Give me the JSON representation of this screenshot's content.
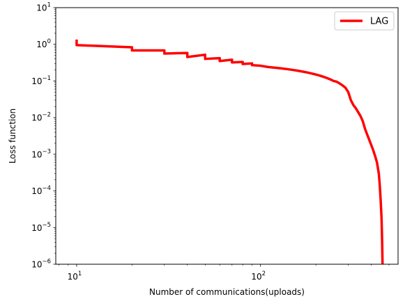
{
  "chart_data": {
    "type": "line",
    "xlabel": "Number of communications(uploads)",
    "ylabel": "Loss function",
    "xscale": "log",
    "yscale": "log",
    "xlim": [
      7.7,
      560
    ],
    "ylim": [
      1e-06,
      10
    ],
    "grid": false,
    "legend_position": "top-right",
    "x_ticks": [
      {
        "value": 10,
        "base": "10",
        "exp": "1"
      },
      {
        "value": 100,
        "base": "10",
        "exp": "2"
      }
    ],
    "y_ticks": [
      {
        "value": 1e-06,
        "base": "10",
        "exp": "−6"
      },
      {
        "value": 1e-05,
        "base": "10",
        "exp": "−5"
      },
      {
        "value": 0.0001,
        "base": "10",
        "exp": "−4"
      },
      {
        "value": 0.001,
        "base": "10",
        "exp": "−3"
      },
      {
        "value": 0.01,
        "base": "10",
        "exp": "−2"
      },
      {
        "value": 0.1,
        "base": "10",
        "exp": "−1"
      },
      {
        "value": 1,
        "base": "10",
        "exp": "0"
      },
      {
        "value": 10,
        "base": "10",
        "exp": "1"
      }
    ],
    "series": [
      {
        "name": "LAG",
        "color": "#ff0000",
        "style": "steps",
        "x": [
          10,
          10,
          20,
          20,
          30,
          30,
          40,
          40,
          50,
          50,
          60,
          60,
          70,
          70,
          80,
          80,
          90,
          90,
          100,
          110,
          120,
          130,
          140,
          150,
          160,
          170,
          180,
          190,
          200,
          210,
          220,
          230,
          240,
          250,
          260,
          270,
          280,
          290,
          300,
          310,
          320,
          330,
          340,
          350,
          360,
          370,
          380,
          390,
          400,
          410,
          420,
          430,
          440,
          445,
          450,
          455,
          458,
          460,
          461
        ],
        "y": [
          1.35,
          0.95,
          0.83,
          0.68,
          0.68,
          0.56,
          0.58,
          0.45,
          0.52,
          0.4,
          0.42,
          0.35,
          0.38,
          0.32,
          0.33,
          0.29,
          0.3,
          0.27,
          0.26,
          0.24,
          0.23,
          0.22,
          0.21,
          0.2,
          0.19,
          0.18,
          0.17,
          0.16,
          0.15,
          0.14,
          0.13,
          0.12,
          0.11,
          0.1,
          0.095,
          0.085,
          0.075,
          0.065,
          0.05,
          0.03,
          0.022,
          0.018,
          0.014,
          0.011,
          0.008,
          0.005,
          0.0035,
          0.0025,
          0.0018,
          0.0013,
          0.0009,
          0.0006,
          0.0003,
          0.00015,
          6e-05,
          2e-05,
          6e-06,
          2e-06,
          1e-06
        ]
      }
    ]
  }
}
